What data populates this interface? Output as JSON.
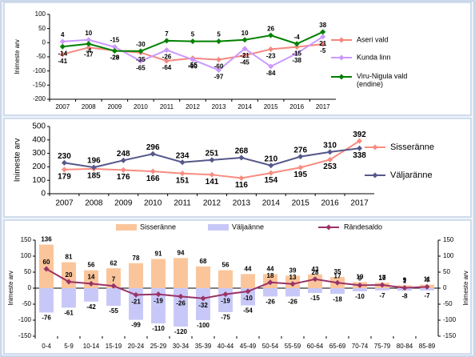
{
  "chart_data": [
    {
      "type": "line",
      "categories": [
        "2007",
        "2008",
        "2009",
        "2010",
        "2011",
        "2012",
        "2013",
        "2014",
        "2015",
        "2016",
        "2017"
      ],
      "y_label": "Inimeste arv",
      "ylim": [
        -200,
        100
      ],
      "yticks": [
        -200,
        -150,
        -100,
        -50,
        0,
        50,
        100
      ],
      "legend": "right",
      "grid": false,
      "series": [
        {
          "name": "Aseri vald",
          "color": "#f4877f",
          "label_color": "#ff0000",
          "values": [
            -41,
            -17,
            -28,
            -35,
            -64,
            -55,
            -60,
            -45,
            -23,
            -15,
            -5
          ]
        },
        {
          "name": "Kunda linn",
          "color": "#cc99ff",
          "label_color": "#9966cc",
          "values": [
            4,
            10,
            -15,
            -65,
            -26,
            -60,
            -97,
            -21,
            -84,
            -38,
            21
          ]
        },
        {
          "name": "Viru-Nigula vald (endine)",
          "color": "#008000",
          "label_color": "#008000",
          "values": [
            -14,
            -4,
            -29,
            -30,
            7,
            5,
            5,
            10,
            26,
            -4,
            38
          ]
        }
      ]
    },
    {
      "type": "line",
      "categories": [
        "2007",
        "2008",
        "2009",
        "2010",
        "2011",
        "2012",
        "2013",
        "2014",
        "2015",
        "2016",
        "2017"
      ],
      "y_label": "Inimeste arv",
      "ylim": [
        0,
        500
      ],
      "yticks": [
        0,
        100,
        200,
        300,
        400,
        500
      ],
      "legend": "right",
      "grid": false,
      "series": [
        {
          "name": "Sisseränne",
          "color": "#fa8c80",
          "label_color": "#ff0000",
          "values": [
            179,
            185,
            176,
            166,
            151,
            141,
            116,
            154,
            195,
            253,
            392
          ]
        },
        {
          "name": "Väljaränne",
          "color": "#56588a",
          "label_color": "#777777",
          "values": [
            230,
            196,
            248,
            296,
            234,
            251,
            268,
            210,
            276,
            310,
            338
          ]
        }
      ]
    },
    {
      "type": "bar",
      "categories": [
        "0-4",
        "5-9",
        "10-14",
        "15-19",
        "20-24",
        "25-29",
        "30-34",
        "35-39",
        "40-44",
        "45-49",
        "50-54",
        "55-59",
        "60-64",
        "65-69",
        "70-74",
        "75-79",
        "80-84",
        "85-89"
      ],
      "y_label": "Inimeste arv",
      "y2_label": "Inimeste arv",
      "ylim": [
        -150,
        150
      ],
      "yticks": [
        -150,
        -100,
        -50,
        0,
        50,
        100,
        150
      ],
      "y2lim": [
        -150,
        150
      ],
      "y2ticks": [
        -150,
        -100,
        -50,
        0,
        50,
        100,
        150
      ],
      "legend": "top",
      "grid": false,
      "series": [
        {
          "name": "Sisseränne",
          "type": "bar",
          "color": "#fac59b",
          "label_color": "#ff0000",
          "values": [
            136,
            81,
            56,
            62,
            78,
            91,
            94,
            68,
            56,
            44,
            44,
            39,
            43,
            35,
            19,
            17,
            9,
            11
          ]
        },
        {
          "name": "Väljaänne",
          "type": "bar",
          "color": "#c8c8f8",
          "label_color": "#1f3c88",
          "values": [
            -76,
            -61,
            -42,
            -55,
            -99,
            -110,
            -120,
            -100,
            -75,
            -54,
            -26,
            -26,
            -15,
            -18,
            -10,
            -7,
            -8,
            -7
          ]
        },
        {
          "name": "Rändesaldo",
          "type": "line",
          "color": "#993366",
          "label_color": "#c00000",
          "values": [
            60,
            20,
            14,
            7,
            -21,
            -19,
            -26,
            -32,
            -19,
            -10,
            18,
            13,
            28,
            17,
            9,
            10,
            1,
            4
          ]
        }
      ]
    }
  ]
}
